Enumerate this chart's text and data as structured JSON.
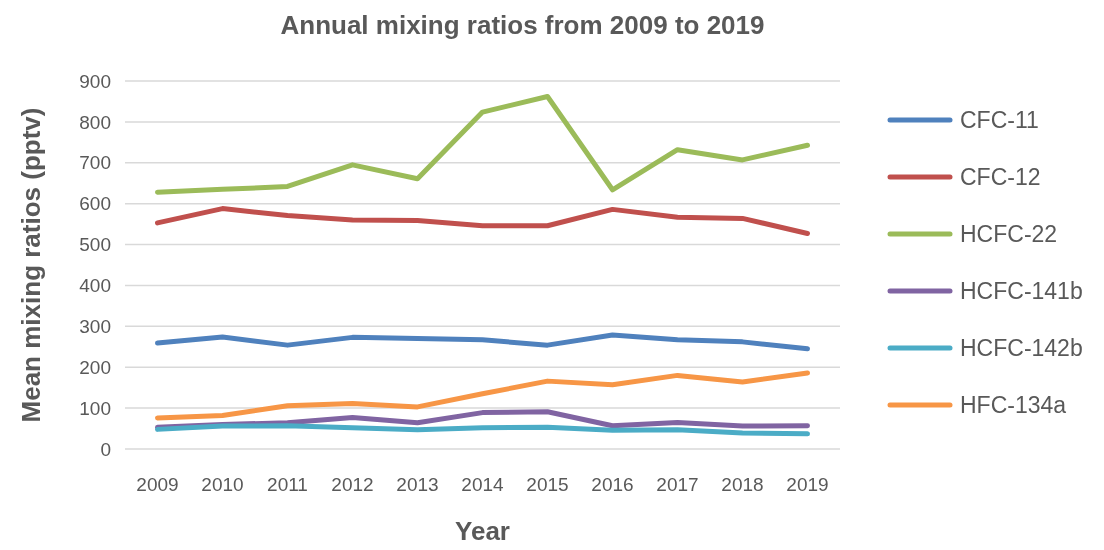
{
  "chart_data": {
    "type": "line",
    "title": "Annual mixing ratios from 2009 to 2019",
    "xlabel": "Year",
    "ylabel": "Mean mixing ratios (pptv)",
    "categories": [
      "2009",
      "2010",
      "2011",
      "2012",
      "2013",
      "2014",
      "2015",
      "2016",
      "2017",
      "2018",
      "2019"
    ],
    "ylim": [
      0,
      900
    ],
    "yticks": [
      0,
      100,
      200,
      300,
      400,
      500,
      600,
      700,
      800,
      900
    ],
    "grid": "y",
    "legend": "right",
    "marker": "none",
    "line_style": "solid",
    "series": [
      {
        "name": "CFC-11",
        "color": "#4f81bd",
        "values": [
          259,
          274,
          254,
          273,
          270,
          267,
          254,
          279,
          267,
          262,
          245
        ]
      },
      {
        "name": "CFC-12",
        "color": "#c0504d",
        "values": [
          553,
          588,
          571,
          560,
          559,
          546,
          546,
          586,
          567,
          564,
          527
        ]
      },
      {
        "name": "HCFC-22",
        "color": "#9bbb59",
        "values": [
          628,
          635,
          642,
          695,
          661,
          824,
          862,
          634,
          732,
          707,
          743
        ]
      },
      {
        "name": "HCFC-141b",
        "color": "#8064a2",
        "values": [
          53,
          60,
          64,
          77,
          64,
          89,
          91,
          57,
          65,
          56,
          57
        ]
      },
      {
        "name": "HCFC-142b",
        "color": "#4bacc6",
        "values": [
          48,
          56,
          57,
          52,
          47,
          52,
          53,
          46,
          47,
          39,
          37
        ]
      },
      {
        "name": "HFC-134a",
        "color": "#f79646",
        "values": [
          76,
          82,
          106,
          111,
          103,
          135,
          166,
          157,
          180,
          164,
          186
        ]
      }
    ]
  }
}
